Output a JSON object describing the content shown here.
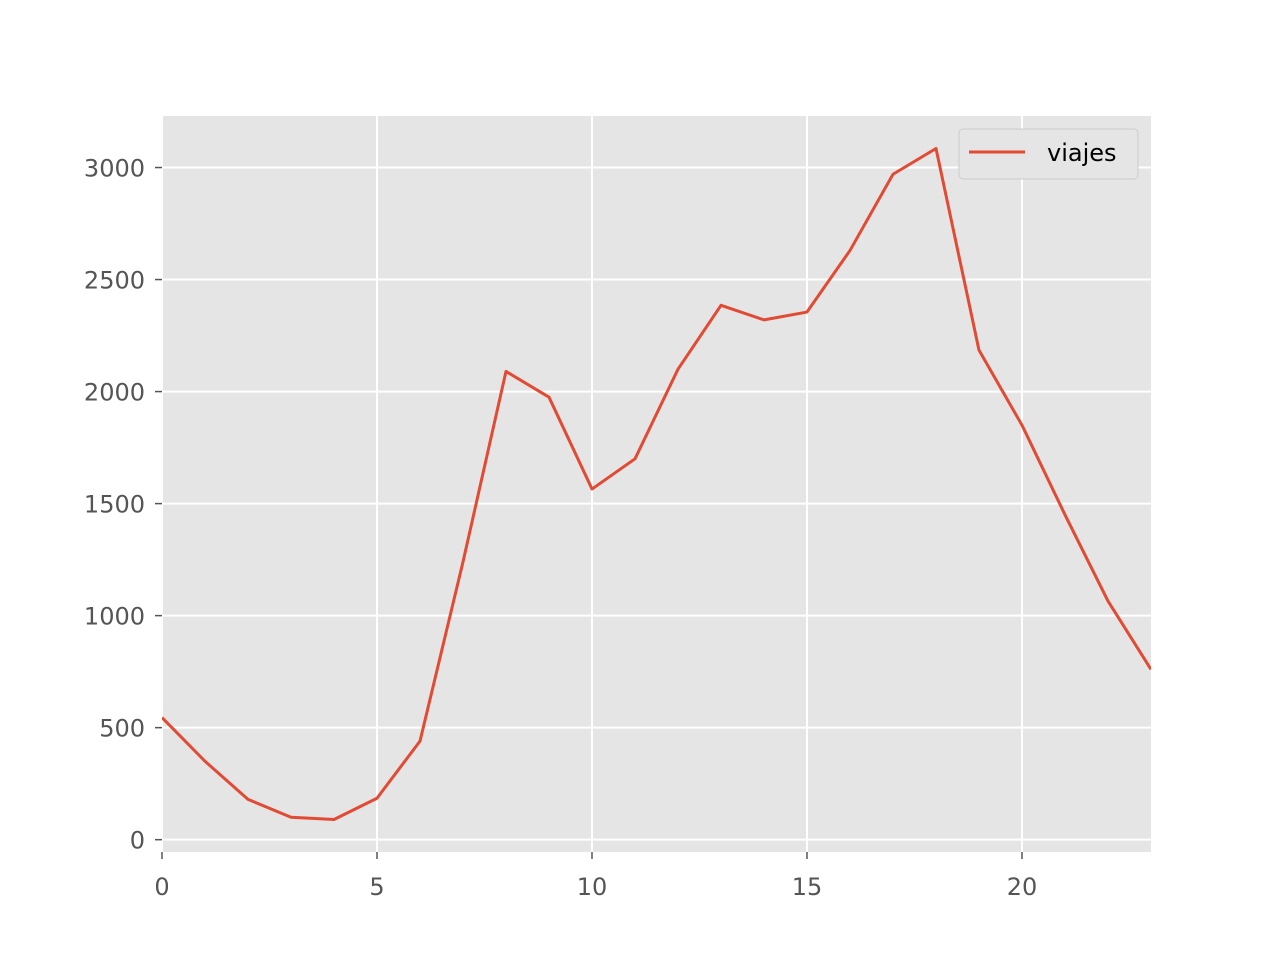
{
  "chart_data": {
    "type": "line",
    "title": "",
    "xlabel": "",
    "ylabel": "",
    "xlim": [
      0,
      23
    ],
    "ylim": [
      -55,
      3230
    ],
    "xticks": [
      0,
      5,
      10,
      15,
      20
    ],
    "xtick_labels": [
      "0",
      "5",
      "10",
      "15",
      "20"
    ],
    "yticks": [
      0,
      500,
      1000,
      1500,
      2000,
      2500,
      3000
    ],
    "ytick_labels": [
      "0",
      "500",
      "1000",
      "1500",
      "2000",
      "2500",
      "3000"
    ],
    "grid": true,
    "style": "ggplot",
    "legend": {
      "position": "top-right",
      "entries": [
        "viajes"
      ]
    },
    "x": [
      0,
      1,
      2,
      3,
      4,
      5,
      6,
      7,
      8,
      9,
      10,
      11,
      12,
      13,
      14,
      15,
      16,
      17,
      18,
      19,
      20,
      21,
      22,
      23
    ],
    "series": [
      {
        "name": "viajes",
        "color": "#e24a33",
        "values": [
          545,
          350,
          180,
          100,
          90,
          185,
          440,
          1240,
          2090,
          1975,
          1565,
          1700,
          2100,
          2385,
          2320,
          2355,
          2630,
          2970,
          3085,
          2185,
          1850,
          1450,
          1065,
          760
        ]
      }
    ]
  }
}
